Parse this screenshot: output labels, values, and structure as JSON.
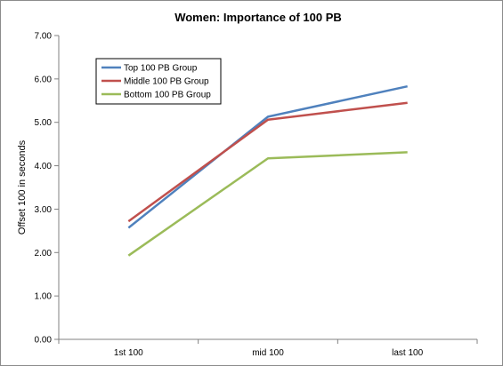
{
  "chart_data": {
    "type": "line",
    "title": "Women: Importance of 100 PB",
    "xlabel": "",
    "ylabel": "Offset 100 in seconds",
    "categories": [
      "1st 100",
      "mid 100",
      "last 100"
    ],
    "ylim": [
      0,
      7
    ],
    "yticks": [
      "0.00",
      "1.00",
      "2.00",
      "3.00",
      "4.00",
      "5.00",
      "6.00",
      "7.00"
    ],
    "grid": false,
    "legend": "top-left",
    "series": [
      {
        "name": "Top 100 PB Group",
        "color": "#4f81bd",
        "values": [
          2.57,
          5.13,
          5.83
        ]
      },
      {
        "name": "Middle 100 PB Group",
        "color": "#c0504d",
        "values": [
          2.72,
          5.06,
          5.45
        ]
      },
      {
        "name": "Bottom 100 PB Group",
        "color": "#9bbb59",
        "values": [
          1.93,
          4.17,
          4.31
        ]
      }
    ]
  }
}
